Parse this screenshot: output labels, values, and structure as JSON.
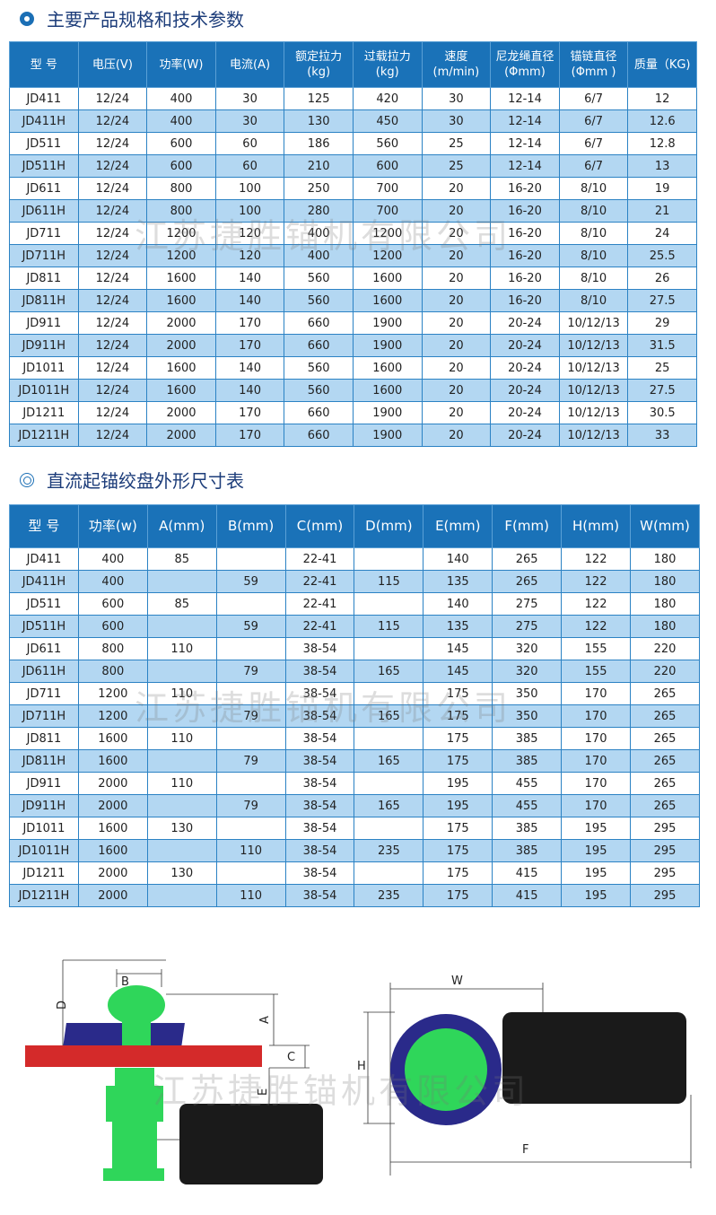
{
  "section1": {
    "title": "主要产品规格和技术参数",
    "headers": [
      "型 号",
      "电压(V)",
      "功率(W)",
      "电流(A)",
      "额定拉力(kg)",
      "过载拉力(kg)",
      "速度(m/min)",
      "尼龙绳直径(Φmm)",
      "锚链直径(Φmm )",
      "质量（KG)"
    ],
    "rows": [
      [
        "JD411",
        "12/24",
        "400",
        "30",
        "125",
        "420",
        "30",
        "12-14",
        "6/7",
        "12"
      ],
      [
        "JD411H",
        "12/24",
        "400",
        "30",
        "130",
        "450",
        "30",
        "12-14",
        "6/7",
        "12.6"
      ],
      [
        "JD511",
        "12/24",
        "600",
        "60",
        "186",
        "560",
        "25",
        "12-14",
        "6/7",
        "12.8"
      ],
      [
        "JD511H",
        "12/24",
        "600",
        "60",
        "210",
        "600",
        "25",
        "12-14",
        "6/7",
        "13"
      ],
      [
        "JD611",
        "12/24",
        "800",
        "100",
        "250",
        "700",
        "20",
        "16-20",
        "8/10",
        "19"
      ],
      [
        "JD611H",
        "12/24",
        "800",
        "100",
        "280",
        "700",
        "20",
        "16-20",
        "8/10",
        "21"
      ],
      [
        "JD711",
        "12/24",
        "1200",
        "120",
        "400",
        "1200",
        "20",
        "16-20",
        "8/10",
        "24"
      ],
      [
        "JD711H",
        "12/24",
        "1200",
        "120",
        "400",
        "1200",
        "20",
        "16-20",
        "8/10",
        "25.5"
      ],
      [
        "JD811",
        "12/24",
        "1600",
        "140",
        "560",
        "1600",
        "20",
        "16-20",
        "8/10",
        "26"
      ],
      [
        "JD811H",
        "12/24",
        "1600",
        "140",
        "560",
        "1600",
        "20",
        "16-20",
        "8/10",
        "27.5"
      ],
      [
        "JD911",
        "12/24",
        "2000",
        "170",
        "660",
        "1900",
        "20",
        "20-24",
        "10/12/13",
        "29"
      ],
      [
        "JD911H",
        "12/24",
        "2000",
        "170",
        "660",
        "1900",
        "20",
        "20-24",
        "10/12/13",
        "31.5"
      ],
      [
        "JD1011",
        "12/24",
        "1600",
        "140",
        "560",
        "1600",
        "20",
        "20-24",
        "10/12/13",
        "25"
      ],
      [
        "JD1011H",
        "12/24",
        "1600",
        "140",
        "560",
        "1600",
        "20",
        "20-24",
        "10/12/13",
        "27.5"
      ],
      [
        "JD1211",
        "12/24",
        "2000",
        "170",
        "660",
        "1900",
        "20",
        "20-24",
        "10/12/13",
        "30.5"
      ],
      [
        "JD1211H",
        "12/24",
        "2000",
        "170",
        "660",
        "1900",
        "20",
        "20-24",
        "10/12/13",
        "33"
      ]
    ]
  },
  "section2": {
    "title": "直流起锚绞盘外形尺寸表",
    "headers": [
      "型 号",
      "功率(w)",
      "A(mm)",
      "B(mm)",
      "C(mm)",
      "D(mm)",
      "E(mm)",
      "F(mm)",
      "H(mm)",
      "W(mm)"
    ],
    "rows": [
      [
        "JD411",
        "400",
        "85",
        "",
        "22-41",
        "",
        "140",
        "265",
        "122",
        "180"
      ],
      [
        "JD411H",
        "400",
        "",
        "59",
        "22-41",
        "115",
        "135",
        "265",
        "122",
        "180"
      ],
      [
        "JD511",
        "600",
        "85",
        "",
        "22-41",
        "",
        "140",
        "275",
        "122",
        "180"
      ],
      [
        "JD511H",
        "600",
        "",
        "59",
        "22-41",
        "115",
        "135",
        "275",
        "122",
        "180"
      ],
      [
        "JD611",
        "800",
        "110",
        "",
        "38-54",
        "",
        "145",
        "320",
        "155",
        "220"
      ],
      [
        "JD611H",
        "800",
        "",
        "79",
        "38-54",
        "165",
        "145",
        "320",
        "155",
        "220"
      ],
      [
        "JD711",
        "1200",
        "110",
        "",
        "38-54",
        "",
        "175",
        "350",
        "170",
        "265"
      ],
      [
        "JD711H",
        "1200",
        "",
        "79",
        "38-54",
        "165",
        "175",
        "350",
        "170",
        "265"
      ],
      [
        "JD811",
        "1600",
        "110",
        "",
        "38-54",
        "",
        "175",
        "385",
        "170",
        "265"
      ],
      [
        "JD811H",
        "1600",
        "",
        "79",
        "38-54",
        "165",
        "175",
        "385",
        "170",
        "265"
      ],
      [
        "JD911",
        "2000",
        "110",
        "",
        "38-54",
        "",
        "195",
        "455",
        "170",
        "265"
      ],
      [
        "JD911H",
        "2000",
        "",
        "79",
        "38-54",
        "165",
        "195",
        "455",
        "170",
        "265"
      ],
      [
        "JD1011",
        "1600",
        "130",
        "",
        "38-54",
        "",
        "175",
        "385",
        "195",
        "295"
      ],
      [
        "JD1011H",
        "1600",
        "",
        "110",
        "38-54",
        "235",
        "175",
        "385",
        "195",
        "295"
      ],
      [
        "JD1211",
        "2000",
        "130",
        "",
        "38-54",
        "",
        "175",
        "415",
        "195",
        "295"
      ],
      [
        "JD1211H",
        "2000",
        "",
        "110",
        "38-54",
        "235",
        "175",
        "415",
        "195",
        "295"
      ]
    ]
  },
  "diagram": {
    "labels": {
      "A": "A",
      "B": "B",
      "C": "C",
      "D": "D",
      "E": "E",
      "W": "W",
      "H": "H",
      "F": "F"
    },
    "colors": {
      "green": "#2fd65a",
      "red": "#d42a2a",
      "navy": "#2a2a8a",
      "black": "#1a1a1a"
    }
  },
  "watermark": "江苏捷胜锚机有限公司"
}
